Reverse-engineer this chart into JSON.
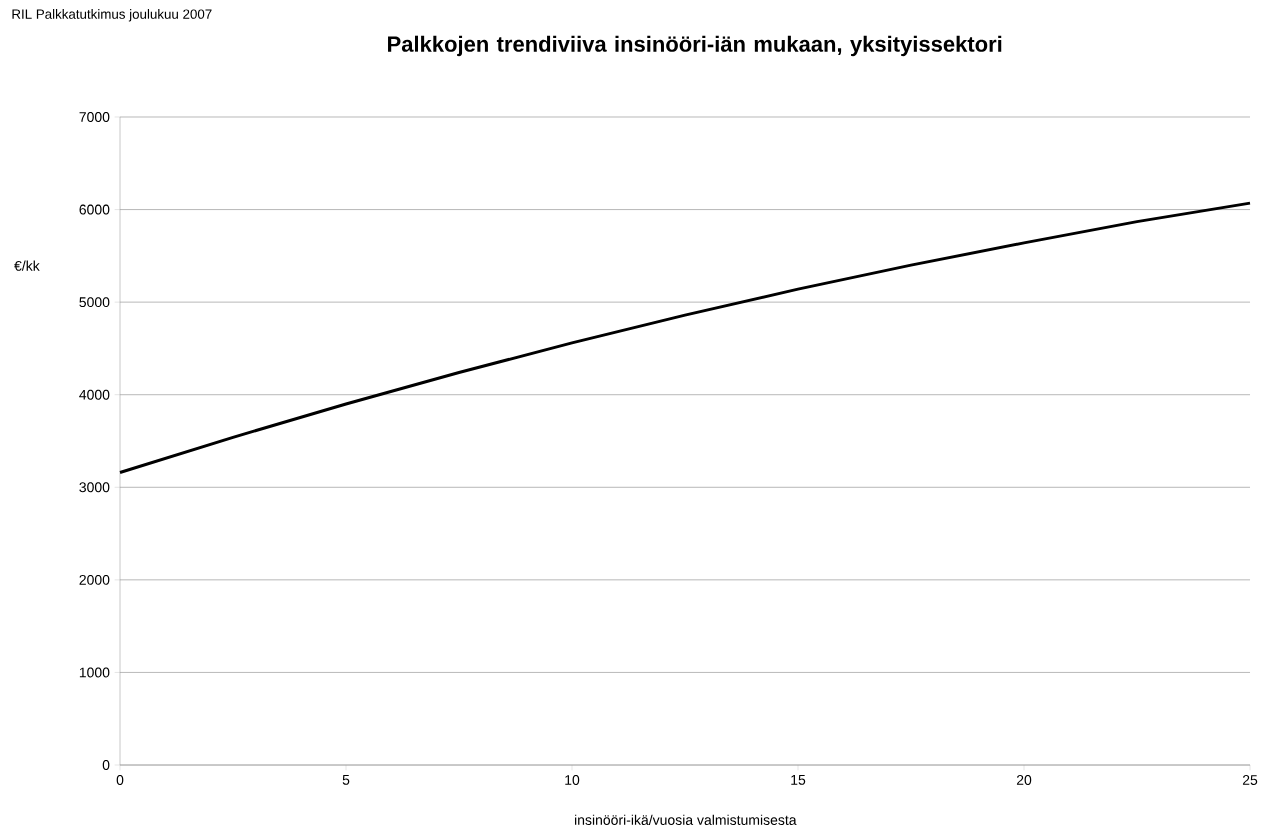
{
  "chart_data": {
    "type": "line",
    "title": "Palkkojen trendiviiva insinööri-iän mukaan, yksityissektori",
    "xlabel": "insinööri-ikä/vuosia valmistumisesta",
    "ylabel": "€/kk",
    "annotations": [
      "RIL Palkkatutkimus joulukuu 2007"
    ],
    "x": [
      0,
      2.5,
      5,
      7.5,
      10,
      12.5,
      15,
      17.5,
      20,
      22.5,
      25
    ],
    "values": [
      3160,
      3540,
      3900,
      4240,
      4560,
      4860,
      5140,
      5400,
      5640,
      5870,
      6070
    ],
    "color": "#000000",
    "xlim": [
      0,
      25
    ],
    "ylim": [
      0,
      7000
    ],
    "xticks": [
      0,
      5,
      10,
      15,
      20,
      25
    ],
    "yticks": [
      0,
      1000,
      2000,
      3000,
      4000,
      5000,
      6000,
      7000
    ],
    "grid": "y"
  }
}
